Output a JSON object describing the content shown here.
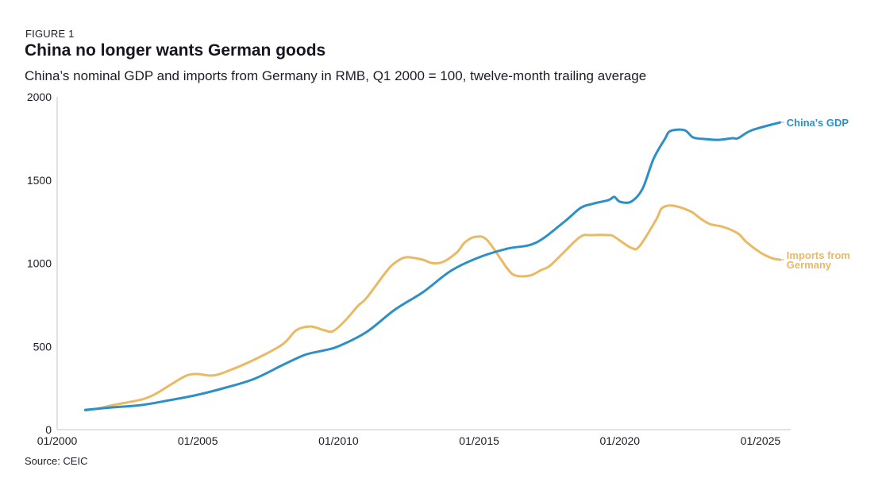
{
  "header": {
    "figure_label": "FIGURE 1",
    "title": "China no longer wants German goods",
    "subtitle": "China’s nominal GDP and imports from Germany in RMB, Q1 2000 = 100, twelve-month trailing average"
  },
  "footer": {
    "source": "Source: CEIC"
  },
  "chart_data": {
    "type": "line",
    "title": "China no longer wants German goods",
    "subtitle": "China’s nominal GDP and imports from Germany in RMB, Q1 2000 = 100, twelve-month trailing average",
    "xlabel": "",
    "ylabel": "",
    "xlim": [
      2000.0,
      2026.0
    ],
    "ylim": [
      0,
      2000
    ],
    "x_ticks": [
      2000,
      2005,
      2010,
      2015,
      2020,
      2025
    ],
    "x_tick_labels": [
      "01/2000",
      "01/2005",
      "01/2010",
      "01/2015",
      "01/2020",
      "01/2025"
    ],
    "y_ticks": [
      0,
      500,
      1000,
      1500,
      2000
    ],
    "y_tick_labels": [
      "0",
      "500",
      "1000",
      "1500",
      "2000"
    ],
    "grid": false,
    "legend": "direct labels at line ends (right)",
    "series": [
      {
        "name": "China's GDP",
        "label": "China's GDP",
        "color": "#2e8fc8",
        "x": [
          2001.0,
          2002.0,
          2003.0,
          2004.0,
          2005.0,
          2006.0,
          2007.0,
          2008.0,
          2008.8,
          2009.5,
          2010.0,
          2011.0,
          2012.0,
          2013.0,
          2014.0,
          2015.0,
          2016.0,
          2017.0,
          2018.0,
          2018.6,
          2019.0,
          2019.6,
          2019.8,
          2020.0,
          2020.4,
          2020.8,
          2021.2,
          2021.6,
          2021.8,
          2022.3,
          2022.6,
          2023.0,
          2023.5,
          2024.0,
          2024.2,
          2024.7,
          2025.7
        ],
        "values": [
          119,
          134,
          148,
          177,
          210,
          253,
          305,
          387,
          449,
          477,
          501,
          587,
          721,
          826,
          955,
          1036,
          1088,
          1122,
          1246,
          1332,
          1356,
          1380,
          1399,
          1370,
          1370,
          1446,
          1628,
          1747,
          1795,
          1800,
          1757,
          1747,
          1742,
          1752,
          1752,
          1800,
          1847
        ]
      },
      {
        "name": "Imports from Germany",
        "label_lines": [
          "Imports from",
          "Germany"
        ],
        "color": "#e9b964",
        "x": [
          2001.0,
          2001.5,
          2002.0,
          2003.0,
          2003.5,
          2004.0,
          2004.6,
          2005.0,
          2005.5,
          2006.0,
          2007.0,
          2008.0,
          2008.5,
          2009.0,
          2009.5,
          2009.8,
          2010.2,
          2010.7,
          2011.0,
          2011.7,
          2012.0,
          2012.4,
          2013.0,
          2013.3,
          2013.7,
          2014.2,
          2014.5,
          2014.9,
          2015.3,
          2016.0,
          2016.3,
          2016.8,
          2017.2,
          2017.5,
          2018.0,
          2018.6,
          2019.0,
          2019.6,
          2019.8,
          2020.4,
          2020.7,
          2021.3,
          2021.5,
          2021.9,
          2022.5,
          2022.9,
          2023.2,
          2023.7,
          2024.2,
          2024.5,
          2025.0,
          2025.4,
          2025.7
        ],
        "values": [
          115,
          129,
          148,
          181,
          215,
          267,
          325,
          334,
          325,
          348,
          420,
          511,
          597,
          620,
          597,
          592,
          649,
          745,
          792,
          950,
          1002,
          1036,
          1021,
          1002,
          1007,
          1064,
          1127,
          1160,
          1136,
          969,
          926,
          926,
          959,
          983,
          1064,
          1160,
          1169,
          1169,
          1160,
          1093,
          1103,
          1265,
          1332,
          1346,
          1313,
          1265,
          1236,
          1217,
          1179,
          1127,
          1064,
          1031,
          1021
        ]
      }
    ]
  }
}
